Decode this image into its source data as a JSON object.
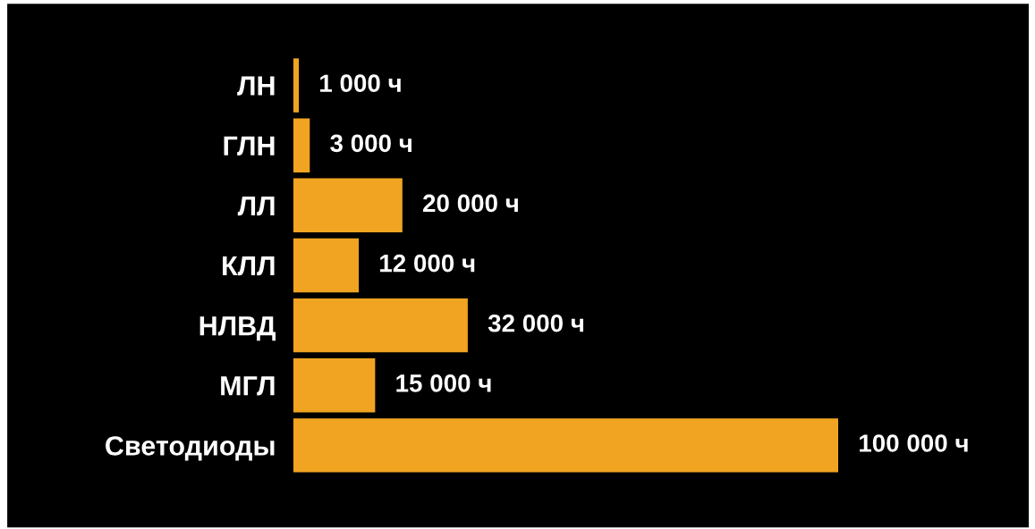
{
  "chart_data": {
    "type": "bar",
    "orientation": "horizontal",
    "categories": [
      "ЛН",
      "ГЛН",
      "ЛЛ",
      "КЛЛ",
      "НЛВД",
      "МГЛ",
      "Светодиоды"
    ],
    "values": [
      1000,
      3000,
      20000,
      12000,
      32000,
      15000,
      100000
    ],
    "value_labels": [
      "1 000 ч",
      "3 000 ч",
      "20 000 ч",
      "12 000 ч",
      "32 000 ч",
      "15 000 ч",
      "100 000 ч"
    ],
    "color": "#f0a421",
    "grid": false,
    "legend": false
  }
}
